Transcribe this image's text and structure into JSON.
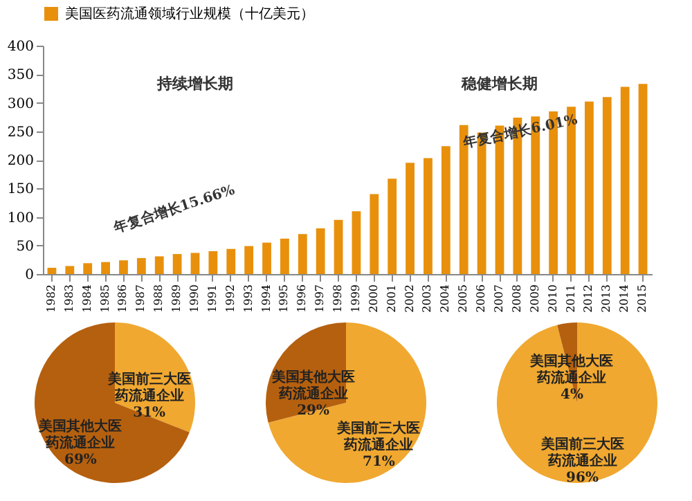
{
  "chart_data": [
    {
      "type": "bar",
      "categories": [
        "1982",
        "1983",
        "1984",
        "1985",
        "1986",
        "1987",
        "1988",
        "1989",
        "1990",
        "1991",
        "1992",
        "1993",
        "1994",
        "1995",
        "1996",
        "1997",
        "1998",
        "1999",
        "2000",
        "2001",
        "2002",
        "2003",
        "2004",
        "2005",
        "2006",
        "2007",
        "2008",
        "2009",
        "2010",
        "2011",
        "2012",
        "2013",
        "2014",
        "2015"
      ],
      "series": [
        {
          "name": "美国医药流通领域行业规模（十亿美元）",
          "color": "#e8900c",
          "values": [
            11,
            14,
            19,
            21,
            24,
            28,
            31,
            35,
            37,
            40,
            44,
            49,
            55,
            62,
            70,
            80,
            95,
            110,
            140,
            167,
            195,
            203,
            224,
            261,
            248,
            260,
            274,
            276,
            285,
            293,
            302,
            310,
            328,
            333
          ]
        }
      ],
      "ylim": [
        0,
        400
      ],
      "yticks": [
        0,
        50,
        100,
        150,
        200,
        250,
        300,
        350,
        400
      ],
      "legend": "top",
      "annotations": [
        "持续增长期",
        "稳健增长期",
        "年复合增长15.66%",
        "年复合增长6.01%"
      ]
    },
    {
      "type": "pie",
      "categories": [
        "美国前三大医药流通企业",
        "美国其他大医药流通企业"
      ],
      "values": [
        31,
        69
      ],
      "value_labels": [
        "31%",
        "69%"
      ],
      "colors": [
        "#f0a830",
        "#b5600f"
      ]
    },
    {
      "type": "pie",
      "categories": [
        "美国前三大医药流通企业",
        "美国其他大医药流通企业"
      ],
      "values": [
        71,
        29
      ],
      "value_labels": [
        "71%",
        "29%"
      ],
      "colors": [
        "#f0a830",
        "#b5600f"
      ]
    },
    {
      "type": "pie",
      "categories": [
        "美国前三大医药流通企业",
        "美国其他大医药流通企业"
      ],
      "values": [
        96,
        4
      ],
      "value_labels": [
        "96%",
        "4%"
      ],
      "colors": [
        "#f0a830",
        "#b5600f"
      ]
    }
  ]
}
